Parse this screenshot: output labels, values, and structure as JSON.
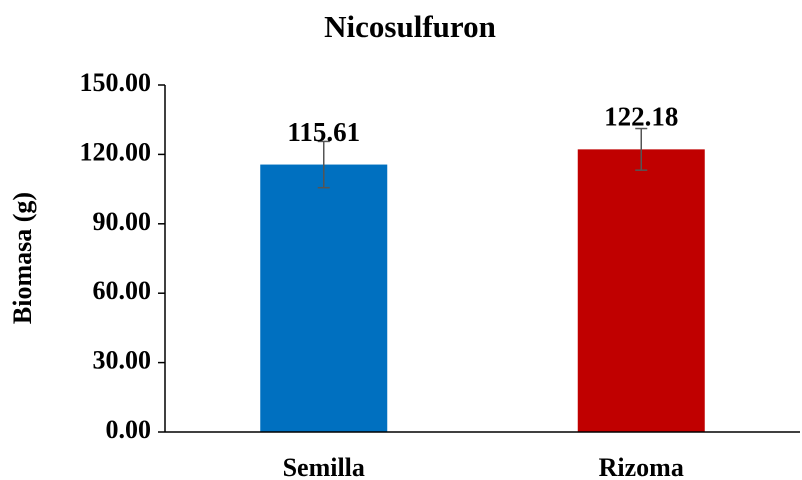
{
  "chart_data": {
    "type": "bar",
    "title": "Nicosulfuron",
    "y_label": "Biomasa (g)",
    "categories": [
      "Semilla",
      "Rizoma"
    ],
    "values": [
      115.61,
      122.18
    ],
    "errors": [
      10,
      9
    ],
    "colors": [
      "#0070c0",
      "#c00000"
    ],
    "ylim": [
      0,
      150
    ],
    "yticks": [
      {
        "value": 0,
        "label": "0.00"
      },
      {
        "value": 30,
        "label": "30.00"
      },
      {
        "value": 60,
        "label": "60.00"
      },
      {
        "value": 90,
        "label": "90.00"
      },
      {
        "value": 120,
        "label": "120.00"
      },
      {
        "value": 150,
        "label": "150.00"
      }
    ],
    "grid": false
  }
}
